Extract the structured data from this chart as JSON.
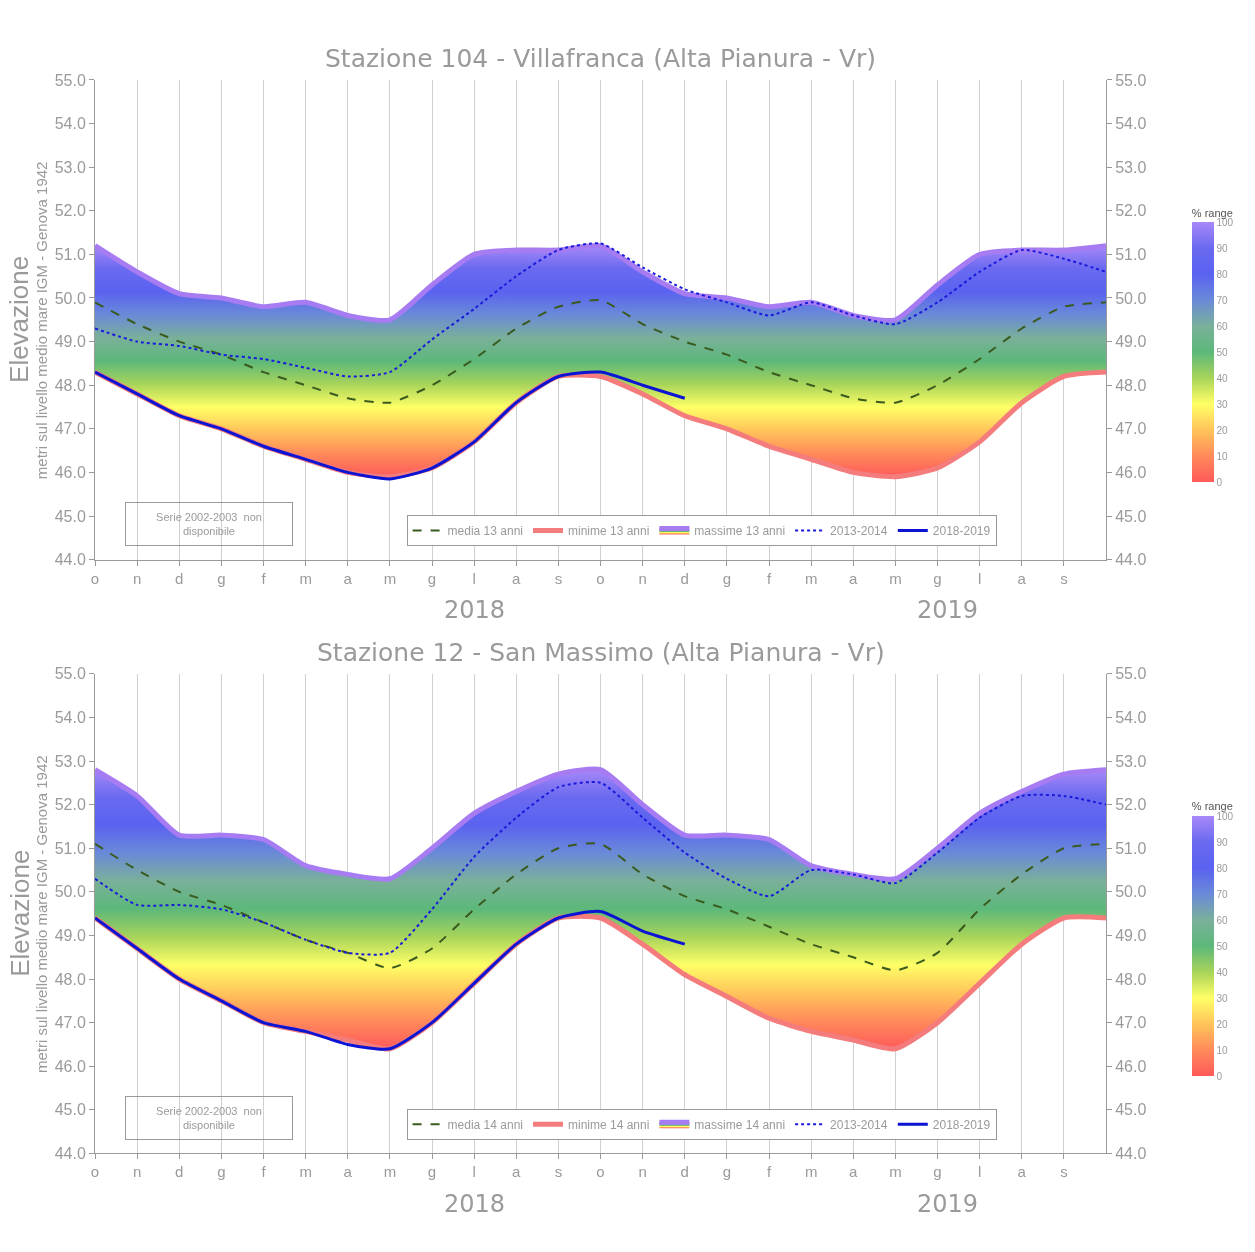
{
  "chart_data": [
    {
      "type": "line",
      "title": "Stazione 104 - Villafranca (Alta Pianura - Vr)",
      "ylabel": "Elevazione\nmetri sul livello medio mare IGM - Genova 1942",
      "clabel": "% range",
      "clim": [
        0,
        100
      ],
      "cticks": [
        0,
        10,
        20,
        30,
        40,
        50,
        60,
        70,
        80,
        90,
        100
      ],
      "categories": [
        "o",
        "n",
        "d",
        "g",
        "f",
        "m",
        "a",
        "m",
        "g",
        "l",
        "a",
        "s",
        "o",
        "n",
        "d",
        "g",
        "f",
        "m",
        "a",
        "m",
        "g",
        "l",
        "a",
        "s",
        null
      ],
      "series": [
        {
          "name": "media 13 anni",
          "color": "#3a5a1e",
          "line_style": "dashed",
          "values": [
            49.9,
            49.4,
            49.0,
            48.7,
            48.3,
            48.0,
            47.7,
            47.6,
            48.0,
            48.6,
            49.3,
            49.8,
            49.95,
            49.4,
            49.0,
            48.7,
            48.3,
            48.0,
            47.7,
            47.6,
            48.0,
            48.6,
            49.3,
            49.8,
            49.9
          ]
        },
        {
          "name": "minime 13 anni",
          "color": "#f47c7c",
          "values": [
            48.3,
            47.8,
            47.3,
            47.0,
            46.6,
            46.3,
            46.0,
            45.9,
            46.1,
            46.7,
            47.6,
            48.2,
            48.2,
            47.8,
            47.3,
            47.0,
            46.6,
            46.3,
            46.0,
            45.9,
            46.1,
            46.7,
            47.6,
            48.2,
            48.3
          ]
        },
        {
          "name": "massime 13 anni",
          "type": "area",
          "color": "#a77cf2",
          "values": [
            51.2,
            50.6,
            50.1,
            50.0,
            49.8,
            49.9,
            49.6,
            49.5,
            50.3,
            51.0,
            51.1,
            51.1,
            51.2,
            50.6,
            50.1,
            50.0,
            49.8,
            49.9,
            49.6,
            49.5,
            50.3,
            51.0,
            51.1,
            51.1,
            51.2
          ]
        },
        {
          "name": "2013-2014",
          "color": "#1a1adc",
          "line_style": "dotted",
          "values": [
            49.3,
            49.0,
            48.9,
            48.7,
            48.6,
            48.4,
            48.2,
            48.3,
            49.05,
            49.75,
            50.5,
            51.1,
            51.25,
            50.7,
            50.2,
            49.9,
            49.6,
            49.9,
            49.6,
            49.4,
            49.9,
            50.6,
            51.1,
            50.9,
            50.6
          ]
        },
        {
          "name": "2018-2019",
          "color": "#0a14d2",
          "values": [
            48.3,
            47.8,
            47.3,
            47.0,
            46.6,
            46.3,
            46.0,
            45.85,
            46.1,
            46.7,
            47.6,
            48.2,
            48.3,
            48.0,
            47.7,
            null,
            null,
            null,
            null,
            null,
            null,
            null,
            null,
            null,
            null
          ]
        }
      ],
      "ylim": [
        44,
        55
      ],
      "yticks": [
        {
          "value": 44,
          "label": "44.0"
        },
        {
          "value": 45,
          "label": "45.0"
        },
        {
          "value": 46,
          "label": "46.0"
        },
        {
          "value": 47,
          "label": "47.0"
        },
        {
          "value": 48,
          "label": "48.0"
        },
        {
          "value": 49,
          "label": "49.0"
        },
        {
          "value": 50,
          "label": "50.0"
        },
        {
          "value": 51,
          "label": "51.0"
        },
        {
          "value": 52,
          "label": "52.0"
        },
        {
          "value": 53,
          "label": "53.0"
        },
        {
          "value": 54,
          "label": "54.0"
        },
        {
          "value": 55,
          "label": "55.0"
        }
      ],
      "y2lim": [
        44,
        55
      ],
      "y2ticks": [
        {
          "value": 44,
          "label": "44.0"
        },
        {
          "value": 45,
          "label": "45.0"
        },
        {
          "value": 46,
          "label": "46.0"
        },
        {
          "value": 47,
          "label": "47.0"
        },
        {
          "value": 48,
          "label": "48.0"
        },
        {
          "value": 49,
          "label": "49.0"
        },
        {
          "value": 50,
          "label": "50.0"
        },
        {
          "value": 51,
          "label": "51.0"
        },
        {
          "value": 52,
          "label": "52.0"
        },
        {
          "value": 53,
          "label": "53.0"
        },
        {
          "value": 54,
          "label": "54.0"
        },
        {
          "value": 55,
          "label": "55.0"
        }
      ],
      "grid": "x",
      "legend": "bottom",
      "annotations": [
        "Serie 2002-2003  non disponibile",
        "2018",
        "2019"
      ]
    },
    {
      "type": "line",
      "title": "Stazione 12 - San Massimo (Alta Pianura - Vr)",
      "ylabel": "Elevazione\nmetri sul livello medio mare IGM - Genova 1942",
      "clabel": "% range",
      "clim": [
        0,
        100
      ],
      "cticks": [
        0,
        10,
        20,
        30,
        40,
        50,
        60,
        70,
        80,
        90,
        100
      ],
      "categories": [
        "o",
        "n",
        "d",
        "g",
        "f",
        "m",
        "a",
        "m",
        "g",
        "l",
        "a",
        "s",
        "o",
        "n",
        "d",
        "g",
        "f",
        "m",
        "a",
        "m",
        "g",
        "l",
        "a",
        "s",
        null
      ],
      "series": [
        {
          "name": "media 14 anni",
          "color": "#3a5a1e",
          "line_style": "dashed",
          "values": [
            51.1,
            50.5,
            50.0,
            49.7,
            49.3,
            48.9,
            48.6,
            48.25,
            48.7,
            49.6,
            50.4,
            51.0,
            51.1,
            50.4,
            49.9,
            49.6,
            49.2,
            48.8,
            48.5,
            48.2,
            48.6,
            49.6,
            50.4,
            51.0,
            51.1
          ]
        },
        {
          "name": "minime 14 anni",
          "color": "#f47c7c",
          "values": [
            49.4,
            48.7,
            48.0,
            47.5,
            47.0,
            46.8,
            46.6,
            46.4,
            47.0,
            47.9,
            48.8,
            49.4,
            49.4,
            48.8,
            48.1,
            47.6,
            47.1,
            46.8,
            46.6,
            46.4,
            47.0,
            47.9,
            48.8,
            49.4,
            49.4
          ]
        },
        {
          "name": "massime 14 anni",
          "type": "area",
          "color": "#a77cf2",
          "values": [
            52.8,
            52.2,
            51.3,
            51.3,
            51.2,
            50.6,
            50.4,
            50.3,
            51.0,
            51.8,
            52.3,
            52.7,
            52.8,
            52.0,
            51.3,
            51.3,
            51.2,
            50.6,
            50.4,
            50.3,
            51.0,
            51.8,
            52.3,
            52.7,
            52.8
          ]
        },
        {
          "name": "2013-2014",
          "color": "#1a1adc",
          "line_style": "dotted",
          "values": [
            50.3,
            49.7,
            49.7,
            49.6,
            49.3,
            48.9,
            48.6,
            48.6,
            49.6,
            50.8,
            51.7,
            52.4,
            52.5,
            51.7,
            50.9,
            50.3,
            49.9,
            50.5,
            50.4,
            50.2,
            50.9,
            51.7,
            52.2,
            52.2,
            52.0
          ]
        },
        {
          "name": "2018-2019",
          "color": "#0a14d2",
          "values": [
            49.4,
            48.7,
            48.0,
            47.5,
            47.0,
            46.8,
            46.5,
            46.4,
            47.0,
            47.9,
            48.8,
            49.4,
            49.55,
            49.1,
            48.8,
            null,
            null,
            null,
            null,
            null,
            null,
            null,
            null,
            null,
            null
          ]
        }
      ],
      "ylim": [
        44,
        55
      ],
      "yticks": [
        {
          "value": 44,
          "label": "44.0"
        },
        {
          "value": 45,
          "label": "45.0"
        },
        {
          "value": 46,
          "label": "46.0"
        },
        {
          "value": 47,
          "label": "47.0"
        },
        {
          "value": 48,
          "label": "48.0"
        },
        {
          "value": 49,
          "label": "49.0"
        },
        {
          "value": 50,
          "label": "50.0"
        },
        {
          "value": 51,
          "label": "51.0"
        },
        {
          "value": 52,
          "label": "52.0"
        },
        {
          "value": 53,
          "label": "53.0"
        },
        {
          "value": 54,
          "label": "54.0"
        },
        {
          "value": 55,
          "label": "55.0"
        }
      ],
      "y2lim": [
        44,
        55
      ],
      "y2ticks": [
        {
          "value": 44,
          "label": "44.0"
        },
        {
          "value": 45,
          "label": "45.0"
        },
        {
          "value": 46,
          "label": "46.0"
        },
        {
          "value": 47,
          "label": "47.0"
        },
        {
          "value": 48,
          "label": "48.0"
        },
        {
          "value": 49,
          "label": "49.0"
        },
        {
          "value": 50,
          "label": "50.0"
        },
        {
          "value": 51,
          "label": "51.0"
        },
        {
          "value": 52,
          "label": "52.0"
        },
        {
          "value": 53,
          "label": "53.0"
        },
        {
          "value": 54,
          "label": "54.0"
        },
        {
          "value": 55,
          "label": "55.0"
        }
      ],
      "grid": "x",
      "legend": "bottom",
      "annotations": [
        "Serie 2002-2003  non disponibile",
        "2018",
        "2019"
      ]
    }
  ]
}
